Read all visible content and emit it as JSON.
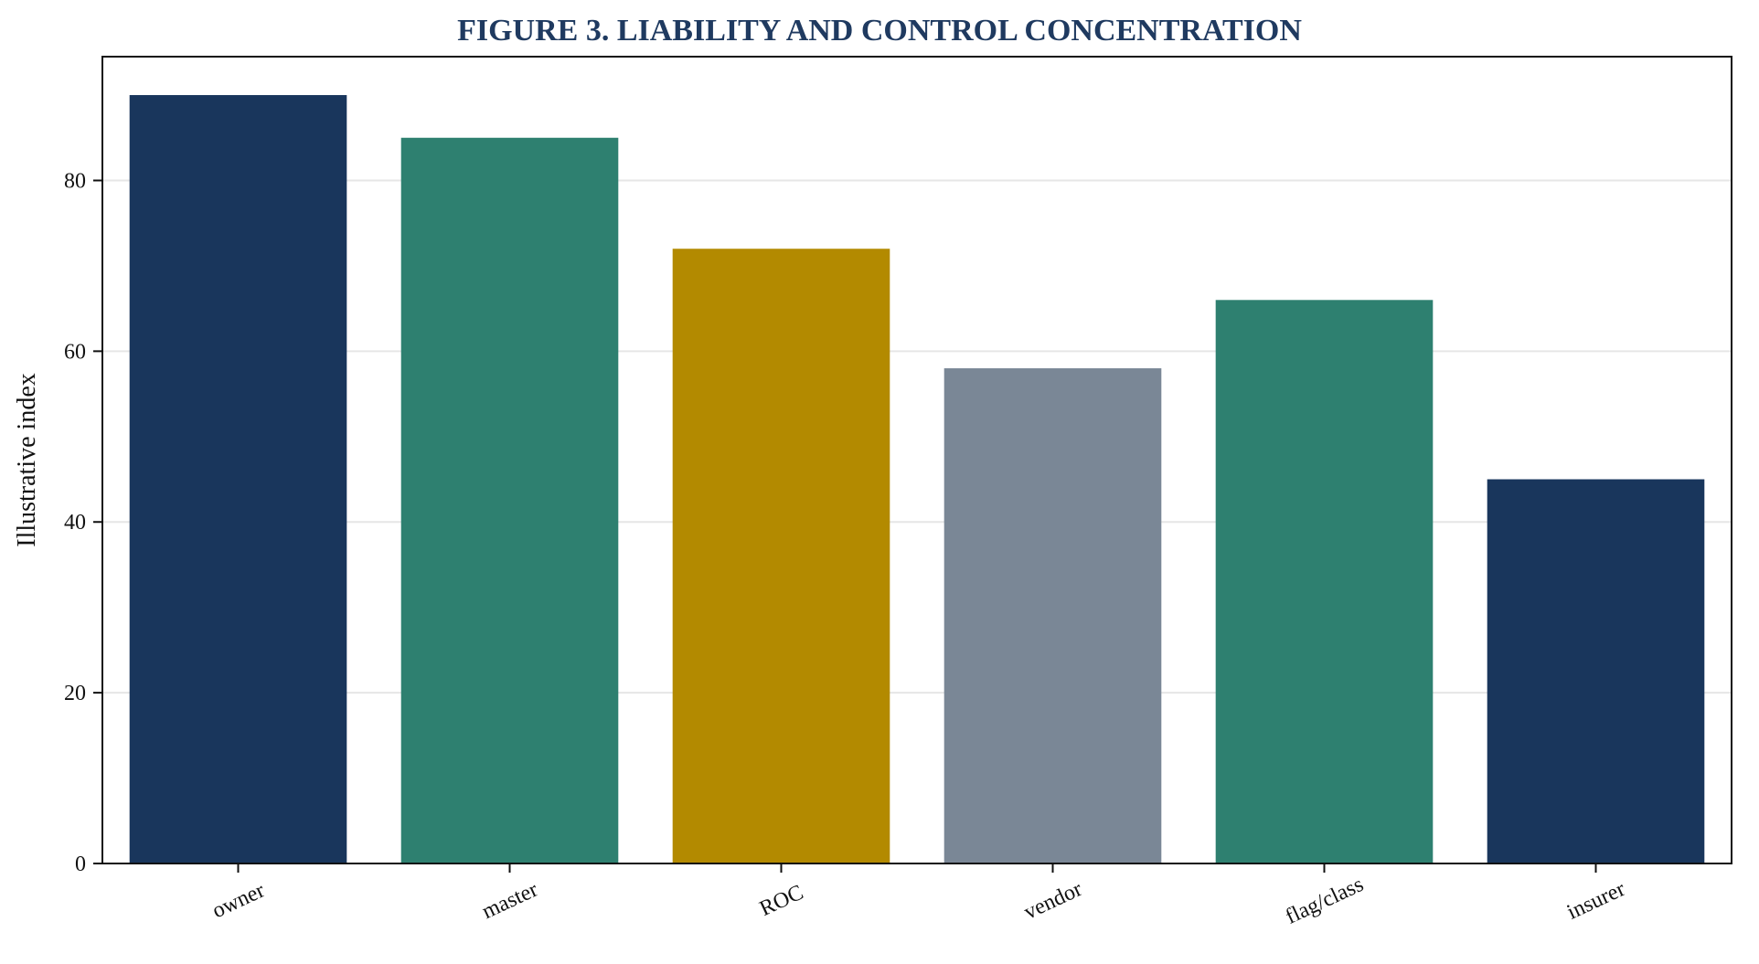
{
  "chart_data": {
    "type": "bar",
    "title": "FIGURE 3. LIABILITY AND CONTROL CONCENTRATION",
    "xlabel": "",
    "ylabel": "Illustrative index",
    "categories": [
      "owner",
      "master",
      "ROC",
      "vendor",
      "flag/class",
      "insurer"
    ],
    "values": [
      90,
      85,
      72,
      58,
      66,
      45
    ],
    "bar_colors": [
      "#19365c",
      "#2e8070",
      "#b38a00",
      "#7a8796",
      "#2e8070",
      "#19365c"
    ],
    "ylim": [
      0,
      94.5
    ],
    "yticks": [
      0,
      20,
      40,
      60,
      80
    ],
    "grid": true,
    "title_color": "#1f3a60",
    "grid_color": "#e6e6e6"
  }
}
